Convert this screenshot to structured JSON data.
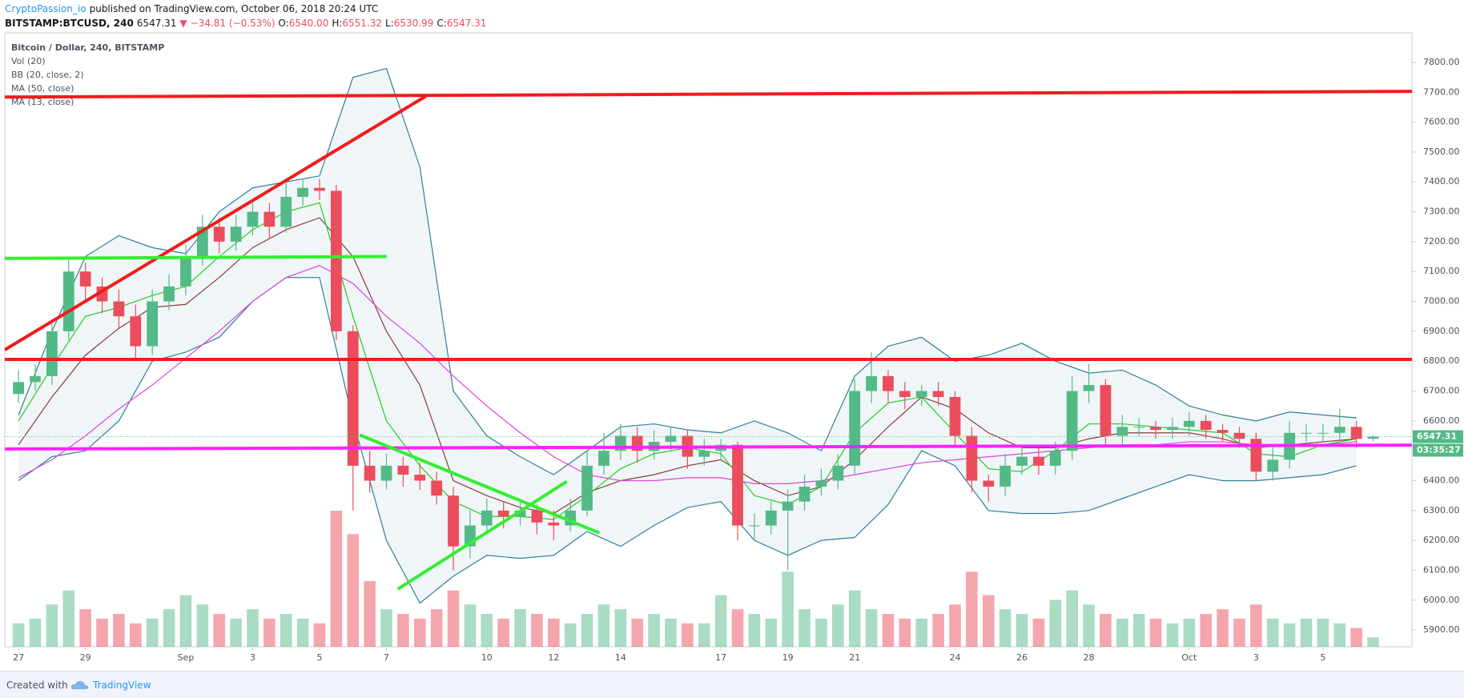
{
  "header": {
    "author": "CryptoPassion_io",
    "published": "published on TradingView.com, October 06, 2018 20:24 UTC",
    "symbol": "BITSTAMP:BTCUSD, 240",
    "price": "6547.31",
    "arrow": "▼",
    "change": "−34.81 (−0.53%)",
    "ohlc": [
      {
        "label": "O:",
        "value": "6540.00"
      },
      {
        "label": "H:",
        "value": "6551.32"
      },
      {
        "label": "L:",
        "value": "6530.99"
      },
      {
        "label": "C:",
        "value": "6547.31"
      }
    ]
  },
  "footer": {
    "created": "Created with",
    "brand": "TradingView"
  },
  "chart_data": {
    "type": "candlestick",
    "symbol_title": "Bitcoin / Dollar, 240, BITSTAMP",
    "volume_label": "Vol (20)",
    "up_color": "#53b987",
    "down_color": "#eb4d5c",
    "grid": true,
    "xlim": [
      -0.41,
      41.66
    ],
    "ylim": [
      5844,
      7899
    ],
    "xticks": [
      {
        "value": 0,
        "label": "27"
      },
      {
        "value": 2,
        "label": "29"
      },
      {
        "value": 5,
        "label": "Sep"
      },
      {
        "value": 7,
        "label": "3"
      },
      {
        "value": 9,
        "label": "5"
      },
      {
        "value": 11,
        "label": "7"
      },
      {
        "value": 14,
        "label": "10"
      },
      {
        "value": 16,
        "label": "12"
      },
      {
        "value": 18,
        "label": "14"
      },
      {
        "value": 21,
        "label": "17"
      },
      {
        "value": 23,
        "label": "19"
      },
      {
        "value": 25,
        "label": "21"
      },
      {
        "value": 28,
        "label": "24"
      },
      {
        "value": 30,
        "label": "26"
      },
      {
        "value": 32,
        "label": "28"
      },
      {
        "value": 35,
        "label": "Oct"
      },
      {
        "value": 37,
        "label": "3"
      },
      {
        "value": 39,
        "label": "5"
      }
    ],
    "yticks": [
      {
        "value": 5900,
        "label": "5900.00"
      },
      {
        "value": 6000,
        "label": "6000.00"
      },
      {
        "value": 6100,
        "label": "6100.00"
      },
      {
        "value": 6200,
        "label": "6200.00"
      },
      {
        "value": 6300,
        "label": "6300.00"
      },
      {
        "value": 6400,
        "label": "6400.00"
      },
      {
        "value": 6500,
        "label": "6500.00"
      },
      {
        "value": 6600,
        "label": "6600.00"
      },
      {
        "value": 6700,
        "label": "6700.00"
      },
      {
        "value": 6800,
        "label": "6800.00"
      },
      {
        "value": 6900,
        "label": "6900.00"
      },
      {
        "value": 7000,
        "label": "7000.00"
      },
      {
        "value": 7100,
        "label": "7100.00"
      },
      {
        "value": 7200,
        "label": "7200.00"
      },
      {
        "value": 7300,
        "label": "7300.00"
      },
      {
        "value": 7400,
        "label": "7400.00"
      },
      {
        "value": 7500,
        "label": "7500.00"
      },
      {
        "value": 7600,
        "label": "7600.00"
      },
      {
        "value": 7700,
        "label": "7700.00"
      },
      {
        "value": 7800,
        "label": "7800.00"
      }
    ],
    "x": [
      0,
      0.5,
      1,
      1.5,
      2,
      2.5,
      3,
      3.5,
      4,
      4.5,
      5,
      5.5,
      6,
      6.5,
      7,
      7.5,
      8,
      8.5,
      9,
      9.5,
      10,
      10.5,
      11,
      11.5,
      12,
      12.5,
      13,
      13.5,
      14,
      14.5,
      15,
      15.5,
      16,
      16.5,
      17,
      17.5,
      18,
      18.5,
      19,
      19.5,
      20,
      20.5,
      21,
      21.5,
      22,
      22.5,
      23,
      23.5,
      24,
      24.5,
      25,
      25.5,
      26,
      26.5,
      27,
      27.5,
      28,
      28.5,
      29,
      29.5,
      30,
      30.5,
      31,
      31.5,
      32,
      32.5,
      33,
      33.5,
      34,
      34.5,
      35,
      35.5,
      36,
      36.5,
      37,
      37.5,
      38,
      38.5,
      39,
      39.5,
      40,
      40.5
    ],
    "open": [
      6690,
      6730,
      6750,
      6900,
      7100,
      7050,
      7000,
      6950,
      6850,
      7000,
      7050,
      7150,
      7250,
      7200,
      7250,
      7300,
      7250,
      7350,
      7380,
      7370,
      6900,
      6450,
      6400,
      6450,
      6420,
      6400,
      6350,
      6180,
      6250,
      6300,
      6280,
      6300,
      6260,
      6250,
      6300,
      6450,
      6500,
      6550,
      6500,
      6530,
      6550,
      6480,
      6500,
      6520,
      6250,
      6250,
      6300,
      6330,
      6380,
      6400,
      6450,
      6700,
      6750,
      6700,
      6680,
      6700,
      6680,
      6550,
      6400,
      6380,
      6450,
      6480,
      6450,
      6500,
      6700,
      6720,
      6550,
      6580,
      6580,
      6570,
      6580,
      6600,
      6570,
      6560,
      6540,
      6430,
      6470,
      6560,
      6560,
      6560,
      6580,
      6540
    ],
    "high": [
      6770,
      6790,
      6940,
      7150,
      7130,
      7080,
      7040,
      6990,
      7040,
      7090,
      7190,
      7290,
      7280,
      7290,
      7340,
      7330,
      7400,
      7410,
      7410,
      7390,
      6920,
      6500,
      6490,
      6480,
      6460,
      6430,
      6380,
      6300,
      6340,
      6330,
      6330,
      6320,
      6300,
      6340,
      6500,
      6560,
      6590,
      6580,
      6570,
      6580,
      6570,
      6540,
      6540,
      6530,
      6290,
      6330,
      6370,
      6420,
      6440,
      6490,
      6740,
      6830,
      6770,
      6730,
      6720,
      6730,
      6700,
      6580,
      6420,
      6490,
      6510,
      6510,
      6530,
      6750,
      6790,
      6740,
      6620,
      6610,
      6600,
      6610,
      6630,
      6620,
      6590,
      6580,
      6560,
      6520,
      6600,
      6590,
      6590,
      6640,
      6600,
      6551.32
    ],
    "low": [
      6660,
      6700,
      6720,
      6870,
      7000,
      6960,
      6910,
      6800,
      6820,
      6970,
      7020,
      7120,
      7160,
      7170,
      7220,
      7210,
      7230,
      7320,
      7340,
      6870,
      6300,
      6360,
      6370,
      6380,
      6370,
      6320,
      6100,
      6140,
      6220,
      6240,
      6250,
      6220,
      6200,
      6230,
      6280,
      6420,
      6470,
      6460,
      6470,
      6500,
      6440,
      6450,
      6470,
      6200,
      6200,
      6220,
      6100,
      6300,
      6350,
      6370,
      6420,
      6660,
      6660,
      6640,
      6650,
      6650,
      6520,
      6360,
      6330,
      6350,
      6420,
      6420,
      6420,
      6470,
      6660,
      6520,
      6520,
      6550,
      6540,
      6540,
      6550,
      6540,
      6530,
      6510,
      6400,
      6400,
      6440,
      6530,
      6530,
      6530,
      6510,
      6530.99
    ],
    "close": [
      6730,
      6750,
      6900,
      7100,
      7050,
      7000,
      6950,
      6850,
      7000,
      7050,
      7150,
      7250,
      7200,
      7250,
      7300,
      7250,
      7350,
      7380,
      7370,
      6900,
      6450,
      6400,
      6450,
      6420,
      6400,
      6350,
      6180,
      6250,
      6300,
      6280,
      6300,
      6260,
      6250,
      6300,
      6450,
      6500,
      6550,
      6500,
      6530,
      6550,
      6480,
      6500,
      6520,
      6250,
      6250,
      6300,
      6330,
      6380,
      6400,
      6450,
      6700,
      6750,
      6700,
      6680,
      6700,
      6680,
      6550,
      6400,
      6380,
      6450,
      6480,
      6450,
      6500,
      6700,
      6720,
      6550,
      6580,
      6580,
      6570,
      6580,
      6600,
      6570,
      6560,
      6540,
      6430,
      6470,
      6560,
      6560,
      6560,
      6580,
      6540,
      6547.31
    ],
    "volume": [
      25,
      30,
      45,
      60,
      40,
      30,
      35,
      25,
      30,
      40,
      55,
      45,
      35,
      30,
      40,
      30,
      35,
      30,
      25,
      145,
      120,
      70,
      40,
      35,
      30,
      40,
      60,
      45,
      35,
      30,
      40,
      35,
      30,
      25,
      35,
      45,
      40,
      30,
      35,
      30,
      25,
      25,
      55,
      40,
      35,
      30,
      80,
      40,
      30,
      45,
      60,
      40,
      35,
      30,
      30,
      35,
      45,
      80,
      55,
      40,
      35,
      30,
      50,
      60,
      45,
      35,
      30,
      35,
      30,
      25,
      30,
      35,
      40,
      30,
      45,
      30,
      25,
      30,
      30,
      25,
      20,
      10
    ],
    "countdown": "03:35:27",
    "indicator_x": [
      0,
      1,
      2,
      3,
      4,
      5,
      6,
      7,
      8,
      9,
      10,
      11,
      12,
      13,
      14,
      15,
      16,
      17,
      18,
      19,
      20,
      21,
      22,
      23,
      24,
      25,
      26,
      27,
      28,
      29,
      30,
      31,
      32,
      33,
      34,
      35,
      36,
      37,
      38,
      39,
      40
    ],
    "bb": {
      "name": "BB (20, close, 2)",
      "color": "#2f7f9a",
      "basis_color": "#8b3a3a",
      "upper": [
        6620,
        6900,
        7150,
        7220,
        7180,
        7160,
        7300,
        7380,
        7400,
        7420,
        7750,
        7780,
        7450,
        6700,
        6550,
        6480,
        6420,
        6500,
        6580,
        6590,
        6570,
        6560,
        6600,
        6560,
        6500,
        6750,
        6850,
        6880,
        6800,
        6820,
        6860,
        6800,
        6760,
        6770,
        6720,
        6650,
        6620,
        6600,
        6630,
        6620,
        6610
      ],
      "basis": [
        6520,
        6680,
        6820,
        6910,
        6980,
        6990,
        7080,
        7180,
        7240,
        7280,
        7150,
        6900,
        6720,
        6400,
        6350,
        6310,
        6290,
        6360,
        6400,
        6420,
        6450,
        6470,
        6400,
        6350,
        6380,
        6470,
        6580,
        6680,
        6640,
        6560,
        6510,
        6510,
        6540,
        6560,
        6560,
        6560,
        6540,
        6510,
        6520,
        6530,
        6540
      ],
      "lower": [
        6400,
        6480,
        6500,
        6600,
        6800,
        6830,
        6880,
        7000,
        7080,
        7080,
        6600,
        6200,
        5990,
        6080,
        6150,
        6140,
        6150,
        6230,
        6180,
        6250,
        6310,
        6330,
        6200,
        6150,
        6200,
        6210,
        6320,
        6500,
        6450,
        6300,
        6290,
        6290,
        6300,
        6340,
        6380,
        6420,
        6400,
        6400,
        6410,
        6420,
        6450
      ]
    },
    "ma50": {
      "name": "MA (50, close)",
      "color": "#e040e0",
      "values": [
        6410,
        6470,
        6550,
        6640,
        6720,
        6810,
        6900,
        7000,
        7080,
        7120,
        7060,
        6950,
        6860,
        6750,
        6650,
        6560,
        6480,
        6420,
        6400,
        6400,
        6410,
        6410,
        6390,
        6390,
        6400,
        6420,
        6440,
        6460,
        6470,
        6480,
        6490,
        6500,
        6510,
        6520,
        6520,
        6530,
        6530,
        6520,
        6520,
        6520,
        6530
      ]
    },
    "ma13": {
      "name": "MA (13, close)",
      "color": "#22cc22",
      "values": [
        6600,
        6780,
        6950,
        6980,
        7020,
        7050,
        7150,
        7240,
        7300,
        7330,
        6950,
        6600,
        6450,
        6330,
        6280,
        6280,
        6270,
        6350,
        6440,
        6490,
        6510,
        6490,
        6350,
        6320,
        6380,
        6560,
        6660,
        6680,
        6560,
        6440,
        6430,
        6500,
        6590,
        6590,
        6580,
        6570,
        6560,
        6490,
        6480,
        6520,
        6540
      ]
    },
    "drawings": [
      {
        "color": "#f21b1b",
        "x": [
          -0.41,
          41.66
        ],
        "y": [
          7684,
          7703
        ]
      },
      {
        "color": "#f21b1b",
        "x": [
          -0.41,
          12.18
        ],
        "y": [
          6838,
          7687
        ]
      },
      {
        "color": "#f21b1b",
        "x": [
          -0.41,
          41.66
        ],
        "y": [
          6806,
          6806
        ]
      },
      {
        "color": "#ff22ff",
        "x": [
          -0.41,
          41.66
        ],
        "y": [
          6506,
          6519
        ]
      },
      {
        "color": "#33ee33",
        "x": [
          -0.41,
          11.0
        ],
        "y": [
          7144,
          7150
        ]
      },
      {
        "color": "#33ee33",
        "x": [
          10.2,
          17.37
        ],
        "y": [
          6553,
          6225
        ]
      },
      {
        "color": "#33ee33",
        "x": [
          11.34,
          16.39
        ],
        "y": [
          6037,
          6397
        ]
      }
    ]
  }
}
